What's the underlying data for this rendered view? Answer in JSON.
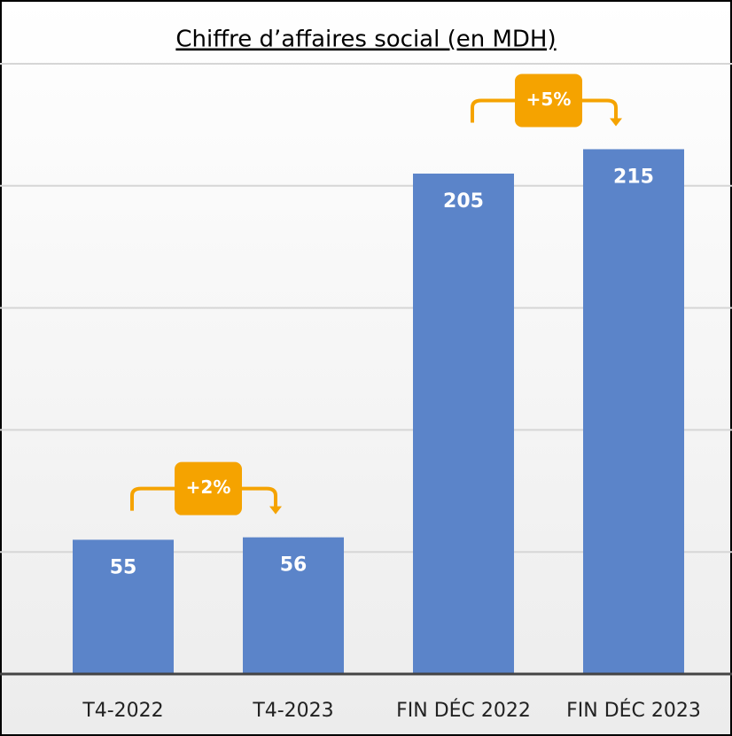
{
  "chart_data": {
    "type": "bar",
    "title": "Chiffre d’affaires social (en MDH)",
    "categories": [
      "T4-2022",
      "T4-2023",
      "FIN DÉC 2022",
      "FIN DÉC 2023"
    ],
    "values": [
      55,
      56,
      205,
      215
    ],
    "color": "#5b84c9",
    "ylim": [
      0,
      250
    ],
    "yticks": [
      0,
      50,
      100,
      150,
      200,
      250
    ],
    "grid": true,
    "annotations": [
      {
        "text": "+2%",
        "color": "#f5a300"
      },
      {
        "text": "+5%",
        "color": "#f5a300"
      }
    ]
  }
}
